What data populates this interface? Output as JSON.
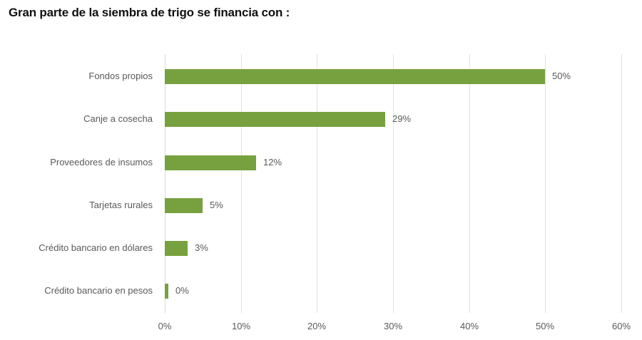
{
  "title": "Gran parte de la siembra de trigo se financia con :",
  "colors": {
    "bar": "#77a13e",
    "text": "#595959",
    "grid": "#e2e2e2"
  },
  "chart_data": {
    "type": "bar",
    "orientation": "horizontal",
    "title": "Gran parte de la siembra de trigo se financia con :",
    "categories": [
      "Fondos propios",
      "Canje a cosecha",
      "Proveedores de insumos",
      "Tarjetas rurales",
      "Crédito bancario en dólares",
      "Crédito bancario en pesos"
    ],
    "values": [
      50,
      29,
      12,
      5,
      3,
      0
    ],
    "value_labels": [
      "50%",
      "29%",
      "12%",
      "5%",
      "3%",
      "0%"
    ],
    "xlabel": "",
    "ylabel": "",
    "xlim": [
      0,
      60
    ],
    "x_ticks": [
      "0%",
      "10%",
      "20%",
      "30%",
      "40%",
      "50%",
      "60%"
    ],
    "grid": true,
    "legend": "none"
  }
}
